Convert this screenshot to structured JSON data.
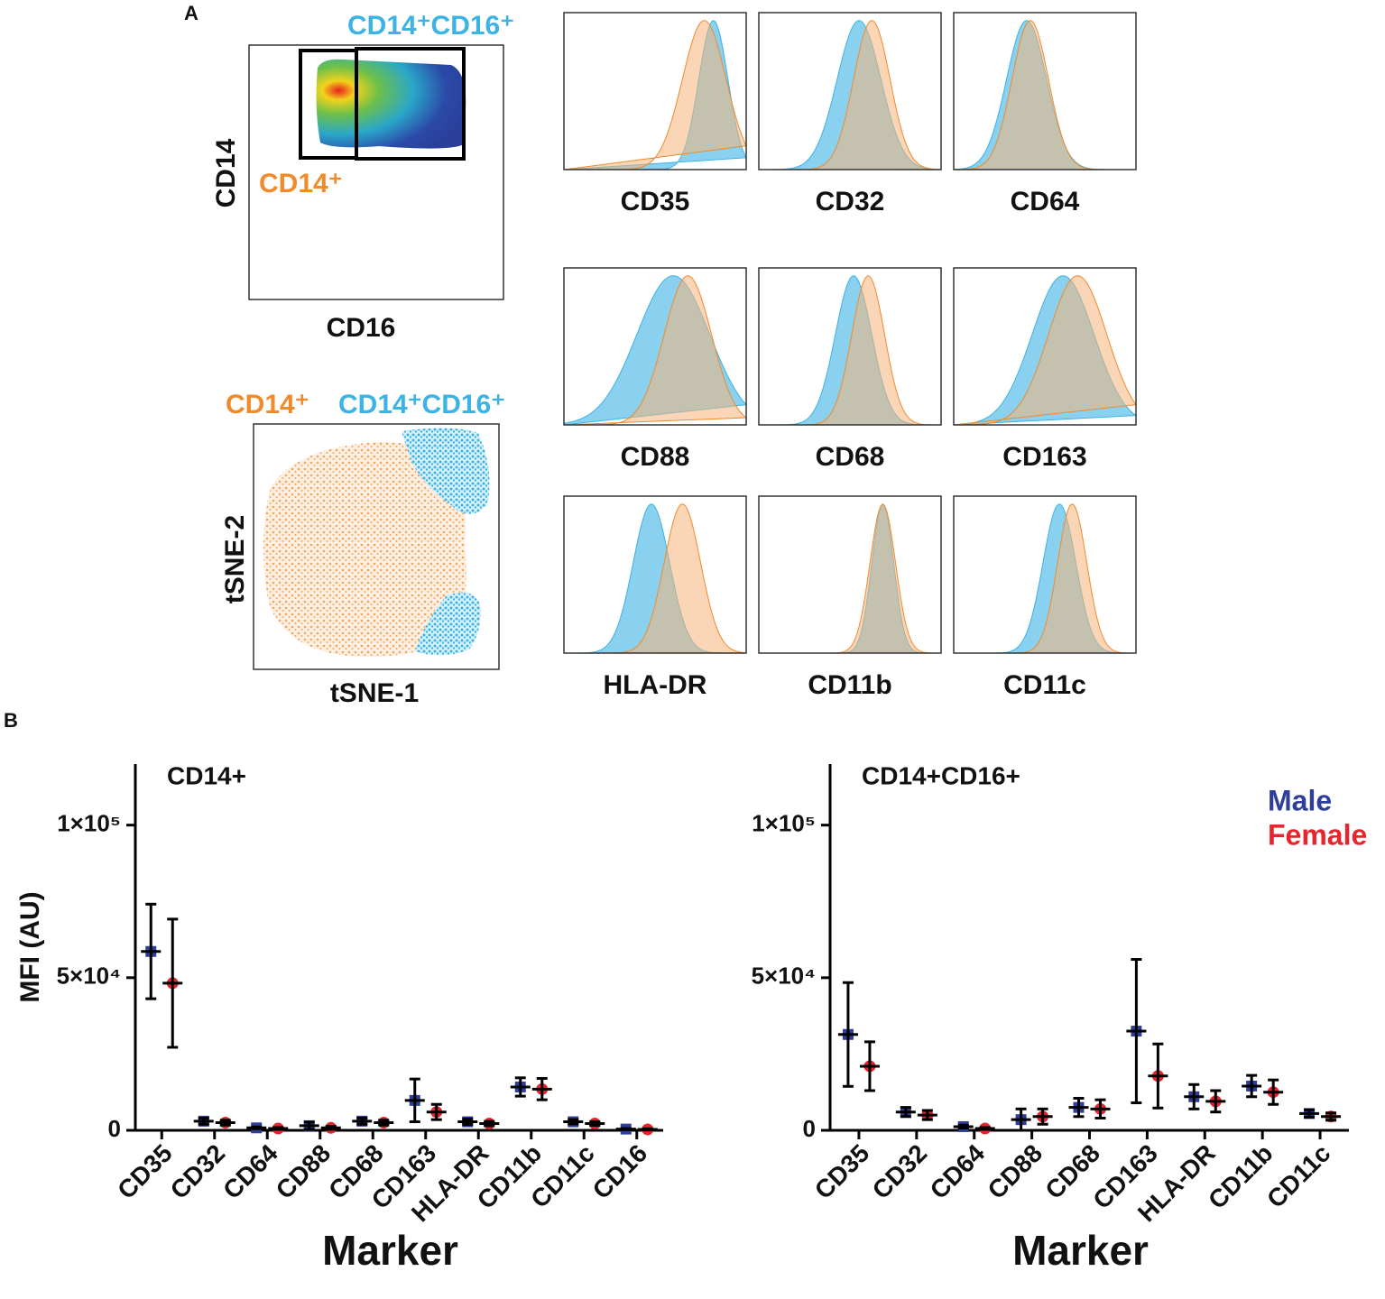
{
  "panel_a": {
    "label": "A",
    "gate_double": "CD14⁺CD16⁺",
    "gate_single": "CD14⁺",
    "scatter_ylabel": "CD14",
    "scatter_xlabel": "CD16",
    "tsne_single": "CD14⁺",
    "tsne_double": "CD14⁺CD16⁺",
    "tsne_ylabel": "tSNE-2",
    "tsne_xlabel": "tSNE-1",
    "histograms": [
      "CD35",
      "CD32",
      "CD64",
      "CD88",
      "CD68",
      "CD163",
      "HLA-DR",
      "CD11b",
      "CD11c"
    ]
  },
  "panel_b_label": "B",
  "chart_data": [
    {
      "type": "dot_errorbar",
      "title": "CD14+",
      "ylabel": "MFI (AU)",
      "xlabel": "Marker",
      "categories": [
        "CD35",
        "CD32",
        "CD64",
        "CD88",
        "CD68",
        "CD163",
        "HLA-DR",
        "CD11b",
        "CD11c",
        "CD16"
      ],
      "ylim": [
        0,
        120000
      ],
      "yticks": [
        0,
        {
          "value": 50000,
          "label": "5×10⁴"
        },
        {
          "value": 100000,
          "label": "1×10⁵"
        }
      ],
      "series": [
        {
          "color": "#2e3e9b",
          "values": [
            58600,
            3000,
            800,
            1500,
            3000,
            9800,
            2800,
            14200,
            2800,
            400
          ],
          "errors": [
            15500,
            1000,
            300,
            1200,
            1000,
            7000,
            900,
            3000,
            700,
            200
          ]
        },
        {
          "color": "#e8242c",
          "values": [
            48200,
            2500,
            600,
            800,
            2500,
            6000,
            2200,
            13500,
            2200,
            300
          ],
          "errors": [
            21000,
            800,
            300,
            500,
            800,
            2500,
            700,
            3500,
            600,
            200
          ]
        }
      ]
    },
    {
      "type": "dot_errorbar",
      "title": "CD14+CD16+",
      "xlabel": "Marker",
      "categories": [
        "CD35",
        "CD32",
        "CD64",
        "CD88",
        "CD68",
        "CD163",
        "HLA-DR",
        "CD11b",
        "CD11c"
      ],
      "ylim": [
        0,
        120000
      ],
      "yticks": [
        0,
        {
          "value": 50000,
          "label": "5×10⁴"
        },
        {
          "value": 100000,
          "label": "1×10⁵"
        }
      ],
      "legend": "top-right",
      "series": [
        {
          "name": "Male",
          "color": "#2e3e9b",
          "values": [
            31400,
            6000,
            1200,
            3500,
            7500,
            32500,
            11000,
            14500,
            5500
          ],
          "errors": [
            17000,
            1500,
            500,
            3500,
            3000,
            23500,
            4000,
            3500,
            1200
          ]
        },
        {
          "name": "Female",
          "color": "#e8242c",
          "values": [
            21000,
            5000,
            600,
            4500,
            7000,
            17800,
            9500,
            12500,
            4500
          ],
          "errors": [
            8000,
            1500,
            300,
            2500,
            3000,
            10500,
            3500,
            4000,
            1200
          ]
        }
      ]
    }
  ]
}
